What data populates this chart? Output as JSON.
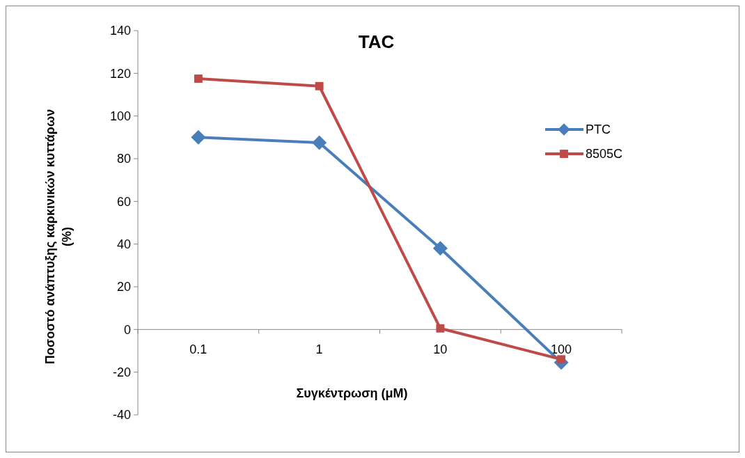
{
  "chart_data": {
    "type": "line",
    "title": "TAC",
    "xlabel": "Συγκέντρωση (μM)",
    "ylabel": "Ποσοστό ανάπτυξης καρκινικών κυττάρων (%)",
    "categories": [
      "0.1",
      "1",
      "10",
      "100"
    ],
    "series": [
      {
        "name": "PTC",
        "color": "#4a7ebb",
        "marker": "diamond",
        "values": [
          90,
          87.5,
          38,
          -15.5
        ]
      },
      {
        "name": "8505C",
        "color": "#be4b48",
        "marker": "square",
        "values": [
          117.5,
          114,
          0.5,
          -14
        ]
      }
    ],
    "ylim": [
      -40,
      140
    ],
    "yticks": [
      -40,
      -20,
      0,
      20,
      40,
      60,
      80,
      100,
      120,
      140
    ],
    "grid": false,
    "legend": "right"
  }
}
